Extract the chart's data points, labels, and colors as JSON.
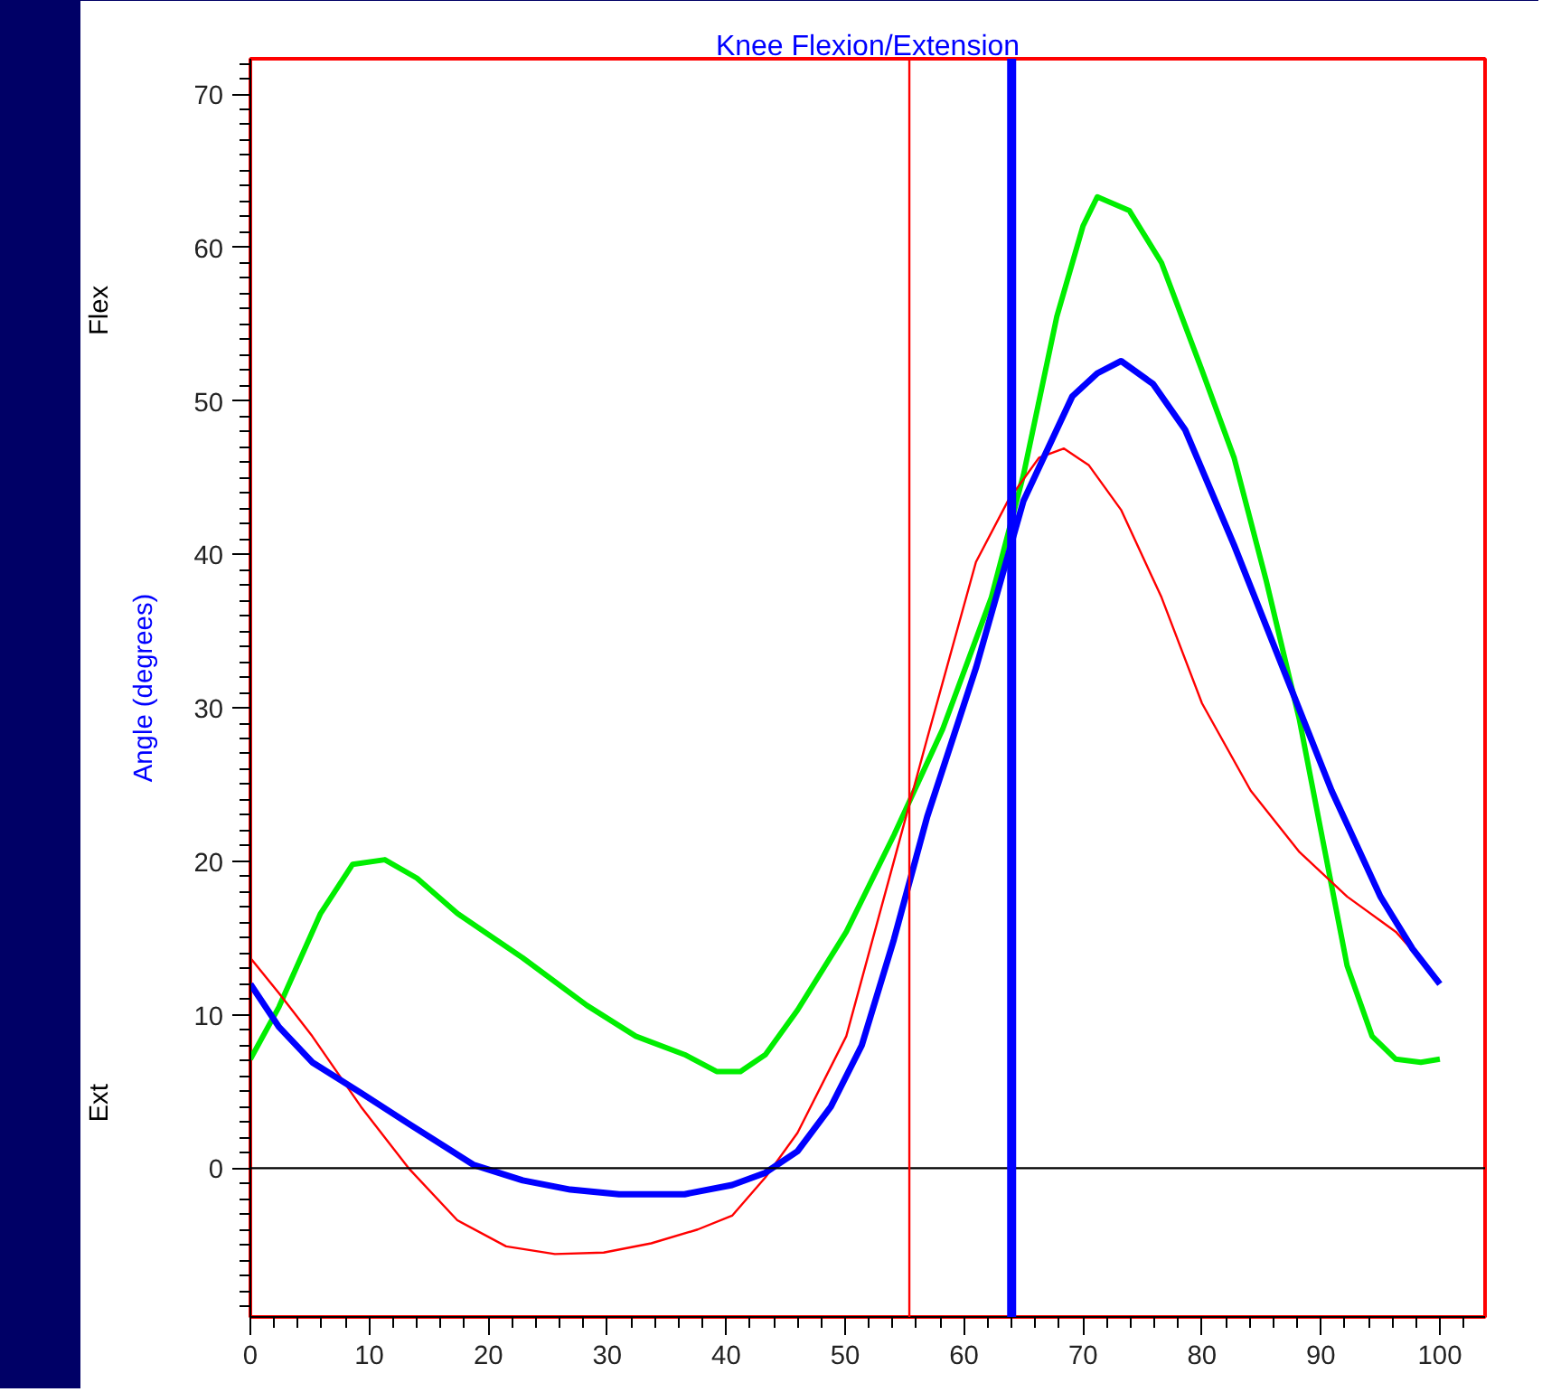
{
  "chart_data": {
    "type": "line",
    "title": "Knee Flexion/Extension",
    "ylabel": "Angle (degrees)",
    "annotations": [
      "Flex",
      "Ext"
    ],
    "xlim": [
      0,
      103.8
    ],
    "ylim": [
      -9.7,
      72.3
    ],
    "xticks": [
      0,
      10,
      20,
      30,
      40,
      50,
      60,
      70,
      80,
      90,
      100
    ],
    "yticks": [
      0,
      10,
      20,
      30,
      40,
      50,
      60,
      70
    ],
    "grid": false,
    "marker": "none",
    "line_style": "solid",
    "ref_lines": [
      {
        "axis": "y",
        "value": 0,
        "label": null,
        "color": "#000000"
      },
      {
        "axis": "x",
        "value": 55.4,
        "label": null,
        "color": "#ff0000"
      },
      {
        "axis": "x",
        "value": 64.0,
        "label": null,
        "color": "#0000ff"
      }
    ],
    "series": [
      {
        "color": "#00ee00",
        "x": [
          0,
          2.4,
          5.9,
          8.6,
          11.3,
          14,
          17.4,
          22.9,
          28.3,
          32.4,
          36.5,
          39.2,
          41.2,
          43.3,
          46,
          50.1,
          54.1,
          58.2,
          62.3,
          65,
          67.8,
          70,
          71.2,
          73.9,
          76.6,
          80,
          82.7,
          85.4,
          88.2,
          90.2,
          92.2,
          94.3,
          96.3,
          98.4,
          100
        ],
        "values": [
          7.1,
          10.5,
          16.6,
          19.8,
          20.1,
          18.9,
          16.6,
          13.7,
          10.6,
          8.6,
          7.4,
          6.3,
          6.3,
          7.4,
          10.3,
          15.4,
          21.7,
          28.6,
          37.2,
          45.2,
          55.5,
          61.4,
          63.3,
          62.4,
          59,
          52,
          46.3,
          38.3,
          29.2,
          21.2,
          13.2,
          8.6,
          7.1,
          6.9,
          7.1
        ]
      },
      {
        "color": "#ff0000",
        "x": [
          0,
          2.4,
          5.2,
          9.3,
          13.3,
          17.4,
          21.5,
          25.6,
          29.7,
          33.7,
          37.6,
          40.5,
          43.3,
          46,
          50.1,
          54.1,
          56.9,
          61,
          63.7,
          66.3,
          68.4,
          70.5,
          73.2,
          76.6,
          80,
          84.1,
          88.2,
          92.2,
          96.3,
          100
        ],
        "values": [
          13.7,
          11.4,
          8.6,
          4,
          0,
          -3.4,
          -5.1,
          -5.6,
          -5.5,
          -4.9,
          -4,
          -3.1,
          -0.6,
          2.3,
          8.6,
          20,
          28,
          39.5,
          43.5,
          46.3,
          46.9,
          45.8,
          42.9,
          37.2,
          30.3,
          24.6,
          20.6,
          17.7,
          15.4,
          12.2
        ]
      },
      {
        "color": "#0000ff",
        "x": [
          0,
          2.4,
          5.2,
          9.3,
          13.3,
          18.8,
          22.9,
          26.9,
          31,
          36.5,
          40.5,
          43.3,
          46,
          48.8,
          51.4,
          54.1,
          56.9,
          61,
          65,
          69.1,
          71.2,
          73.2,
          75.9,
          78.6,
          82.7,
          86.8,
          90.9,
          95,
          97.7,
          100
        ],
        "values": [
          12,
          9.2,
          6.9,
          4.9,
          2.9,
          0.2,
          -0.8,
          -1.4,
          -1.7,
          -1.7,
          -1.1,
          -0.3,
          1.1,
          4,
          8,
          14.9,
          22.9,
          32.6,
          43.5,
          50.3,
          51.8,
          52.6,
          51.1,
          48.1,
          40.6,
          32.6,
          24.6,
          17.7,
          14.3,
          12
        ]
      }
    ]
  }
}
